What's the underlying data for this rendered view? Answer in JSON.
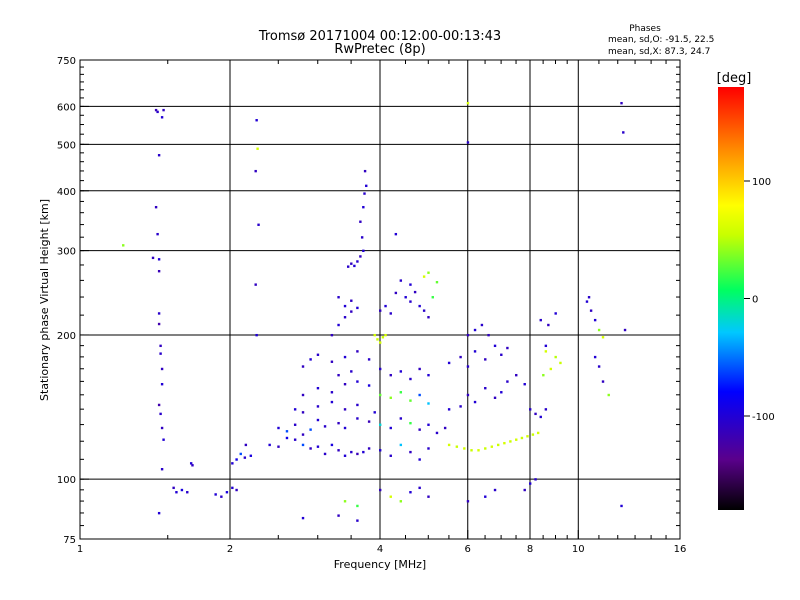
{
  "chart_data": {
    "type": "scatter",
    "title": "Tromsø 20171004 00:12:00-00:13:43",
    "subtitle": "RwPretec (8p)",
    "xlabel": "Frequency [MHz]",
    "ylabel": "Stationary phase Virtual Height [km]",
    "x_scale": "log",
    "y_scale": "log",
    "xlim": [
      1,
      16
    ],
    "ylim": [
      75,
      750
    ],
    "x_ticks": [
      1,
      2,
      4,
      6,
      8,
      10,
      16
    ],
    "y_ticks": [
      75,
      100,
      200,
      300,
      400,
      500,
      600,
      750
    ],
    "x_gridlines": [
      2,
      4,
      6,
      8,
      10
    ],
    "y_gridlines": [
      100,
      200,
      300,
      400,
      500,
      600
    ],
    "grid": true,
    "stats": {
      "heading": "Phases",
      "line_o": "mean, sd,O: -91.5, 22.5",
      "line_x": "mean, sd,X:  87.3, 24.7"
    },
    "colorbar": {
      "label": "[deg]",
      "min": -180,
      "max": 180,
      "ticks": [
        100,
        0,
        -100
      ],
      "colormap": "rainbow (black-purple-blue-cyan-green-yellow-orange-red)"
    },
    "points": [
      [
        1.22,
        308,
        40
      ],
      [
        1.4,
        290,
        -110
      ],
      [
        1.42,
        590,
        -115
      ],
      [
        1.43,
        585,
        -105
      ],
      [
        1.47,
        590,
        -110
      ],
      [
        1.46,
        570,
        -100
      ],
      [
        1.44,
        475,
        -105
      ],
      [
        1.42,
        370,
        -110
      ],
      [
        1.43,
        325,
        -105
      ],
      [
        1.44,
        288,
        -100
      ],
      [
        1.44,
        272,
        -115
      ],
      [
        1.44,
        222,
        -105
      ],
      [
        1.44,
        211,
        -120
      ],
      [
        1.45,
        190,
        -110
      ],
      [
        1.45,
        183,
        -105
      ],
      [
        1.46,
        170,
        -110
      ],
      [
        1.46,
        158,
        -100
      ],
      [
        1.44,
        143,
        -120
      ],
      [
        1.45,
        137,
        -105
      ],
      [
        1.46,
        128,
        -110
      ],
      [
        1.47,
        121,
        -100
      ],
      [
        1.46,
        105,
        -105
      ],
      [
        1.44,
        85,
        -100
      ],
      [
        1.54,
        96,
        -110
      ],
      [
        1.56,
        94,
        -100
      ],
      [
        1.6,
        95,
        -95
      ],
      [
        1.64,
        94,
        -105
      ],
      [
        1.67,
        108,
        -100
      ],
      [
        1.68,
        107,
        -110
      ],
      [
        1.87,
        93,
        -100
      ],
      [
        1.92,
        92,
        -105
      ],
      [
        1.97,
        94,
        -95
      ],
      [
        2.02,
        96,
        -100
      ],
      [
        2.06,
        95,
        -110
      ],
      [
        2.02,
        108,
        -100
      ],
      [
        2.06,
        110,
        -90
      ],
      [
        2.1,
        113,
        -60
      ],
      [
        2.14,
        111,
        -105
      ],
      [
        2.2,
        112,
        -95
      ],
      [
        2.15,
        118,
        -110
      ],
      [
        2.26,
        562,
        -100
      ],
      [
        2.25,
        440,
        -110
      ],
      [
        2.28,
        340,
        -105
      ],
      [
        2.25,
        255,
        -110
      ],
      [
        2.26,
        200,
        -100
      ],
      [
        2.27,
        490,
        60
      ],
      [
        2.4,
        118,
        -100
      ],
      [
        2.5,
        117,
        -110
      ],
      [
        2.6,
        122,
        -90
      ],
      [
        2.7,
        121,
        -105
      ],
      [
        2.8,
        118,
        -60
      ],
      [
        2.9,
        116,
        -110
      ],
      [
        3.0,
        117,
        -100
      ],
      [
        3.1,
        113,
        -105
      ],
      [
        3.2,
        118,
        -95
      ],
      [
        3.3,
        115,
        -110
      ],
      [
        3.4,
        112,
        -100
      ],
      [
        3.5,
        114,
        -105
      ],
      [
        3.6,
        113,
        -115
      ],
      [
        3.7,
        114,
        -100
      ],
      [
        3.8,
        116,
        -110
      ],
      [
        2.5,
        128,
        -100
      ],
      [
        2.6,
        126,
        -60
      ],
      [
        2.7,
        130,
        -105
      ],
      [
        2.8,
        124,
        -110
      ],
      [
        2.9,
        127,
        -60
      ],
      [
        3.0,
        133,
        -100
      ],
      [
        3.1,
        129,
        -105
      ],
      [
        3.3,
        131,
        -110
      ],
      [
        3.4,
        128,
        -100
      ],
      [
        3.6,
        134,
        -105
      ],
      [
        3.8,
        132,
        -115
      ],
      [
        2.7,
        140,
        -100
      ],
      [
        2.8,
        138,
        -110
      ],
      [
        3.0,
        142,
        -105
      ],
      [
        3.2,
        145,
        -100
      ],
      [
        3.4,
        140,
        -110
      ],
      [
        3.6,
        143,
        -105
      ],
      [
        3.9,
        138,
        -100
      ],
      [
        2.8,
        150,
        -110
      ],
      [
        3.0,
        155,
        -100
      ],
      [
        3.2,
        152,
        -105
      ],
      [
        3.4,
        158,
        -110
      ],
      [
        3.6,
        160,
        -100
      ],
      [
        3.8,
        157,
        -95
      ],
      [
        3.3,
        165,
        -110
      ],
      [
        3.5,
        168,
        -105
      ],
      [
        2.8,
        172,
        -110
      ],
      [
        2.9,
        178,
        -100
      ],
      [
        3.0,
        182,
        -105
      ],
      [
        3.2,
        176,
        -110
      ],
      [
        3.4,
        180,
        -100
      ],
      [
        3.6,
        185,
        -110
      ],
      [
        3.8,
        178,
        -105
      ],
      [
        3.2,
        200,
        -110
      ],
      [
        3.3,
        210,
        -100
      ],
      [
        3.4,
        218,
        -105
      ],
      [
        3.5,
        224,
        -110
      ],
      [
        3.4,
        230,
        -100
      ],
      [
        3.3,
        240,
        -105
      ],
      [
        3.5,
        236,
        -110
      ],
      [
        3.6,
        228,
        -100
      ],
      [
        3.45,
        278,
        -105
      ],
      [
        3.5,
        282,
        -110
      ],
      [
        3.55,
        279,
        -100
      ],
      [
        3.6,
        285,
        -105
      ],
      [
        3.65,
        292,
        -110
      ],
      [
        3.7,
        300,
        -100
      ],
      [
        3.68,
        320,
        -105
      ],
      [
        3.65,
        345,
        -110
      ],
      [
        3.7,
        370,
        -100
      ],
      [
        3.72,
        395,
        -105
      ],
      [
        3.73,
        440,
        -110
      ],
      [
        3.75,
        410,
        -100
      ],
      [
        3.9,
        200,
        60
      ],
      [
        3.95,
        196,
        55
      ],
      [
        4.0,
        193,
        60
      ],
      [
        4.05,
        198,
        55
      ],
      [
        4.1,
        200,
        60
      ],
      [
        4.0,
        225,
        -110
      ],
      [
        4.1,
        230,
        -100
      ],
      [
        4.2,
        222,
        -105
      ],
      [
        4.3,
        245,
        -110
      ],
      [
        4.5,
        240,
        -100
      ],
      [
        4.6,
        235,
        -105
      ],
      [
        4.7,
        246,
        -110
      ],
      [
        4.8,
        230,
        -100
      ],
      [
        4.9,
        225,
        -105
      ],
      [
        5.0,
        218,
        -110
      ],
      [
        5.1,
        240,
        20
      ],
      [
        5.2,
        258,
        30
      ],
      [
        4.9,
        265,
        60
      ],
      [
        5.0,
        270,
        40
      ],
      [
        4.6,
        255,
        -100
      ],
      [
        4.4,
        260,
        -105
      ],
      [
        4.3,
        325,
        -100
      ],
      [
        4.0,
        170,
        -105
      ],
      [
        4.2,
        165,
        -110
      ],
      [
        4.4,
        168,
        -100
      ],
      [
        4.6,
        162,
        -105
      ],
      [
        4.8,
        170,
        -110
      ],
      [
        5.0,
        165,
        -100
      ],
      [
        4.0,
        150,
        30
      ],
      [
        4.2,
        148,
        40
      ],
      [
        4.4,
        152,
        20
      ],
      [
        4.6,
        146,
        30
      ],
      [
        4.8,
        150,
        -60
      ],
      [
        5.0,
        144,
        -30
      ],
      [
        4.0,
        130,
        -20
      ],
      [
        4.2,
        128,
        -100
      ],
      [
        4.4,
        134,
        -105
      ],
      [
        4.6,
        131,
        20
      ],
      [
        4.8,
        127,
        -110
      ],
      [
        5.0,
        130,
        -100
      ],
      [
        5.2,
        125,
        -105
      ],
      [
        5.4,
        128,
        -110
      ],
      [
        4.0,
        115,
        -100
      ],
      [
        4.2,
        112,
        -105
      ],
      [
        4.4,
        118,
        -30
      ],
      [
        4.6,
        114,
        -110
      ],
      [
        4.8,
        110,
        -100
      ],
      [
        5.0,
        116,
        -105
      ],
      [
        4.0,
        95,
        -110
      ],
      [
        4.2,
        92,
        60
      ],
      [
        4.4,
        90,
        40
      ],
      [
        4.6,
        94,
        -100
      ],
      [
        4.8,
        96,
        -105
      ],
      [
        5.0,
        92,
        -110
      ],
      [
        5.5,
        118,
        60
      ],
      [
        5.7,
        117,
        55
      ],
      [
        5.9,
        116,
        60
      ],
      [
        6.1,
        115,
        55
      ],
      [
        6.3,
        115,
        60
      ],
      [
        6.5,
        116,
        55
      ],
      [
        6.7,
        117,
        60
      ],
      [
        6.9,
        118,
        55
      ],
      [
        7.1,
        119,
        60
      ],
      [
        7.3,
        120,
        55
      ],
      [
        7.5,
        121,
        60
      ],
      [
        7.7,
        122,
        55
      ],
      [
        7.9,
        123,
        60
      ],
      [
        8.1,
        124,
        55
      ],
      [
        8.3,
        125,
        60
      ],
      [
        5.5,
        140,
        -100
      ],
      [
        5.8,
        142,
        -105
      ],
      [
        6.0,
        150,
        -110
      ],
      [
        6.2,
        145,
        -100
      ],
      [
        6.5,
        155,
        -105
      ],
      [
        6.8,
        148,
        -110
      ],
      [
        7.0,
        152,
        -100
      ],
      [
        7.2,
        160,
        -105
      ],
      [
        7.5,
        165,
        -110
      ],
      [
        7.8,
        158,
        -100
      ],
      [
        8.0,
        140,
        -105
      ],
      [
        8.2,
        137,
        -110
      ],
      [
        8.4,
        135,
        -100
      ],
      [
        8.6,
        140,
        -105
      ],
      [
        5.5,
        175,
        -100
      ],
      [
        5.8,
        180,
        -110
      ],
      [
        6.0,
        172,
        -105
      ],
      [
        6.2,
        185,
        -100
      ],
      [
        6.5,
        178,
        -110
      ],
      [
        6.8,
        190,
        -100
      ],
      [
        7.0,
        182,
        -105
      ],
      [
        7.2,
        188,
        -110
      ],
      [
        6.0,
        200,
        -110
      ],
      [
        6.2,
        205,
        -100
      ],
      [
        6.4,
        210,
        -105
      ],
      [
        6.6,
        200,
        -110
      ],
      [
        6.0,
        505,
        -105
      ],
      [
        6.0,
        610,
        60
      ],
      [
        8.5,
        165,
        40
      ],
      [
        8.8,
        170,
        60
      ],
      [
        9.0,
        180,
        50
      ],
      [
        9.2,
        175,
        55
      ],
      [
        8.6,
        190,
        -100
      ],
      [
        8.4,
        215,
        -105
      ],
      [
        8.7,
        210,
        -110
      ],
      [
        9.0,
        222,
        -100
      ],
      [
        8.6,
        185,
        60
      ],
      [
        8.0,
        98,
        -100
      ],
      [
        8.2,
        100,
        -105
      ],
      [
        7.8,
        95,
        -110
      ],
      [
        6.5,
        92,
        -100
      ],
      [
        6.8,
        95,
        -105
      ],
      [
        6.0,
        90,
        -110
      ],
      [
        10.4,
        235,
        -100
      ],
      [
        10.5,
        240,
        -105
      ],
      [
        10.6,
        225,
        -110
      ],
      [
        10.8,
        215,
        -100
      ],
      [
        11.0,
        205,
        40
      ],
      [
        11.2,
        198,
        60
      ],
      [
        10.8,
        180,
        -100
      ],
      [
        11.0,
        172,
        -105
      ],
      [
        11.2,
        160,
        -110
      ],
      [
        11.5,
        150,
        40
      ],
      [
        12.2,
        610,
        -110
      ],
      [
        12.3,
        530,
        -105
      ],
      [
        12.2,
        88,
        -100
      ],
      [
        12.4,
        205,
        -110
      ],
      [
        2.8,
        83,
        -100
      ],
      [
        3.3,
        84,
        -110
      ],
      [
        3.6,
        82,
        -105
      ],
      [
        3.4,
        90,
        40
      ],
      [
        3.6,
        88,
        20
      ]
    ]
  }
}
